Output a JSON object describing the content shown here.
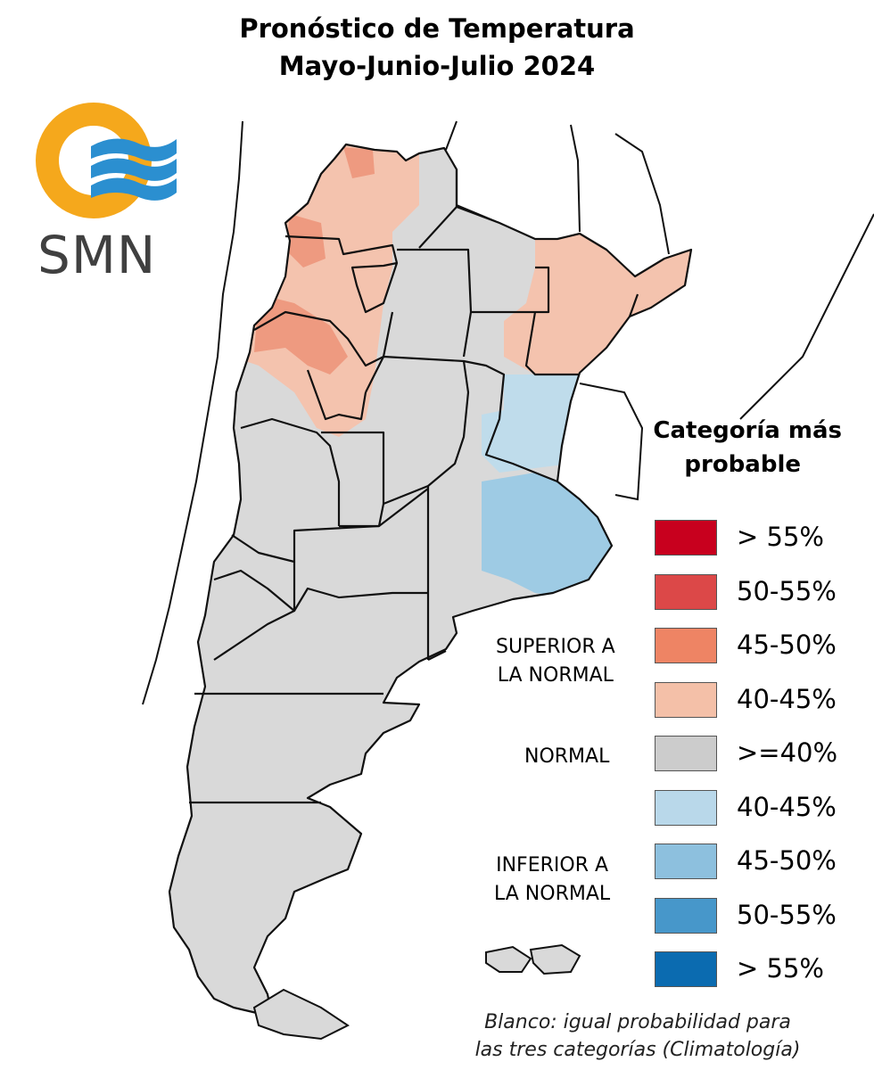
{
  "title": {
    "line1": "Pronóstico de Temperatura",
    "line2": "Mayo-Junio-Julio 2024"
  },
  "logo": {
    "text": "SMN",
    "colors": {
      "ring": "#F5A81C",
      "waves": "#2B8FD0",
      "text": "#404040"
    }
  },
  "legend": {
    "title_line1": "Categoría más",
    "title_line2": "probable",
    "groups": {
      "superior": [
        "SUPERIOR A",
        "LA NORMAL"
      ],
      "normal": [
        "NORMAL"
      ],
      "inferior": [
        "INFERIOR A",
        "LA NORMAL"
      ]
    },
    "items": [
      {
        "label": "> 55%",
        "color": "#C8001E",
        "category": "superior"
      },
      {
        "label": "50-55%",
        "color": "#DC4848",
        "category": "superior"
      },
      {
        "label": "45-50%",
        "color": "#EE8464",
        "category": "superior"
      },
      {
        "label": "40-45%",
        "color": "#F4C0A8",
        "category": "superior"
      },
      {
        "label": ">=40%",
        "color": "#CCCCCC",
        "category": "normal"
      },
      {
        "label": "40-45%",
        "color": "#B9D8EA",
        "category": "inferior"
      },
      {
        "label": "45-50%",
        "color": "#8DC0DE",
        "category": "inferior"
      },
      {
        "label": "50-55%",
        "color": "#4797CA",
        "category": "inferior"
      },
      {
        "label": "> 55%",
        "color": "#0B6BB0",
        "category": "inferior"
      }
    ]
  },
  "note": {
    "line1": "Blanco: igual probabilidad para",
    "line2": "las tres categorías (Climatología)"
  },
  "map": {
    "colors": {
      "normal": "#D9D9D9",
      "superior_40_45": "#F4C3AE",
      "superior_45_50": "#EE9A80",
      "inferior_40_45": "#BFDCEB",
      "inferior_45_50": "#9ECBE4",
      "border": "#111111"
    }
  }
}
